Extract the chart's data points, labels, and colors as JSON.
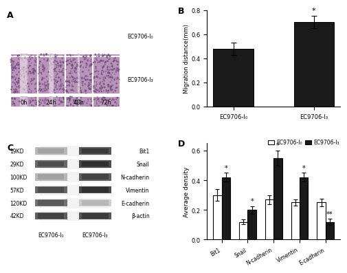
{
  "panel_B": {
    "categories": [
      "EC9706-I₀",
      "EC9706-I₃"
    ],
    "values": [
      0.48,
      0.7
    ],
    "errors": [
      0.05,
      0.05
    ],
    "bar_colors": [
      "#1a1a1a",
      "#1a1a1a"
    ],
    "ylabel": "Migration distance(mm)",
    "ylim": [
      0,
      0.8
    ],
    "yticks": [
      0.0,
      0.2,
      0.4,
      0.6,
      0.8
    ],
    "significance": [
      "",
      "*"
    ],
    "title": "B"
  },
  "panel_D": {
    "categories": [
      "Bit1",
      "Snail",
      "N-cadherin",
      "Vimentin",
      "E-cadherin"
    ],
    "values_I0": [
      0.3,
      0.12,
      0.27,
      0.25,
      0.25
    ],
    "values_I3": [
      0.42,
      0.2,
      0.55,
      0.42,
      0.12
    ],
    "errors_I0": [
      0.04,
      0.015,
      0.03,
      0.02,
      0.025
    ],
    "errors_I3": [
      0.03,
      0.025,
      0.05,
      0.03,
      0.02
    ],
    "color_I0": "#ffffff",
    "color_I3": "#1a1a1a",
    "ylabel": "Average density",
    "ylim": [
      0,
      0.65
    ],
    "yticks": [
      0.0,
      0.2,
      0.4,
      0.6
    ],
    "significance_I0": [
      "",
      "",
      "",
      "",
      ""
    ],
    "significance_I3": [
      "*",
      "*",
      "*",
      "*",
      "**"
    ],
    "legend_I0": "EC9706-I₀",
    "legend_I3": "EC9706-I₃",
    "title": "D"
  },
  "panel_A": {
    "label_right_top": "EC9706-I₀",
    "label_right_bot": "EC9706-I₃",
    "time_labels": [
      "0h",
      "24h",
      "48h",
      "72h"
    ]
  },
  "panel_C": {
    "proteins": [
      "Bit1",
      "Snail",
      "N-cadherin",
      "Vimentin",
      "E-cadherin",
      "β-actin"
    ],
    "kd_labels": [
      "19KD",
      "29KD",
      "100KD",
      "57KD",
      "120KD",
      "42KD"
    ],
    "col_labels": [
      "EC9706-I₀",
      "EC9706-I₃"
    ],
    "band_intensities_I0": [
      0.35,
      0.75,
      0.35,
      0.75,
      0.7,
      0.8
    ],
    "band_intensities_I3": [
      0.85,
      0.9,
      0.8,
      0.9,
      0.25,
      0.85
    ]
  }
}
